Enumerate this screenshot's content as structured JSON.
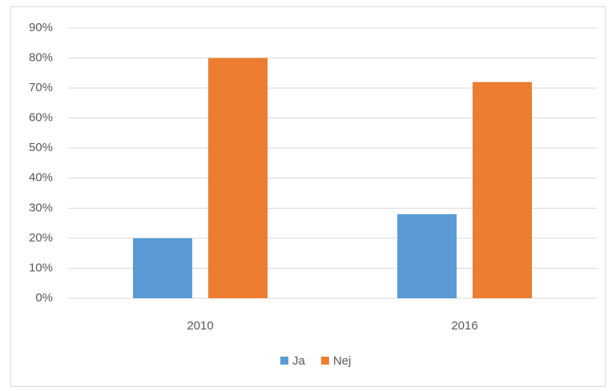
{
  "chart_data": {
    "type": "bar",
    "categories": [
      "2010",
      "2016"
    ],
    "series": [
      {
        "name": "Ja",
        "color": "#5b9bd5",
        "values": [
          20,
          28
        ]
      },
      {
        "name": "Nej",
        "color": "#ed7d31",
        "values": [
          80,
          72
        ]
      }
    ],
    "ylim": [
      0,
      90
    ],
    "yticks": [
      {
        "value": 0,
        "label": "0%"
      },
      {
        "value": 10,
        "label": "10%"
      },
      {
        "value": 20,
        "label": "20%"
      },
      {
        "value": 30,
        "label": "30%"
      },
      {
        "value": 40,
        "label": "40%"
      },
      {
        "value": 50,
        "label": "50%"
      },
      {
        "value": 60,
        "label": "60%"
      },
      {
        "value": 70,
        "label": "70%"
      },
      {
        "value": 80,
        "label": "80%"
      },
      {
        "value": 90,
        "label": "90%"
      }
    ],
    "grid": true,
    "legend": "bottom"
  }
}
